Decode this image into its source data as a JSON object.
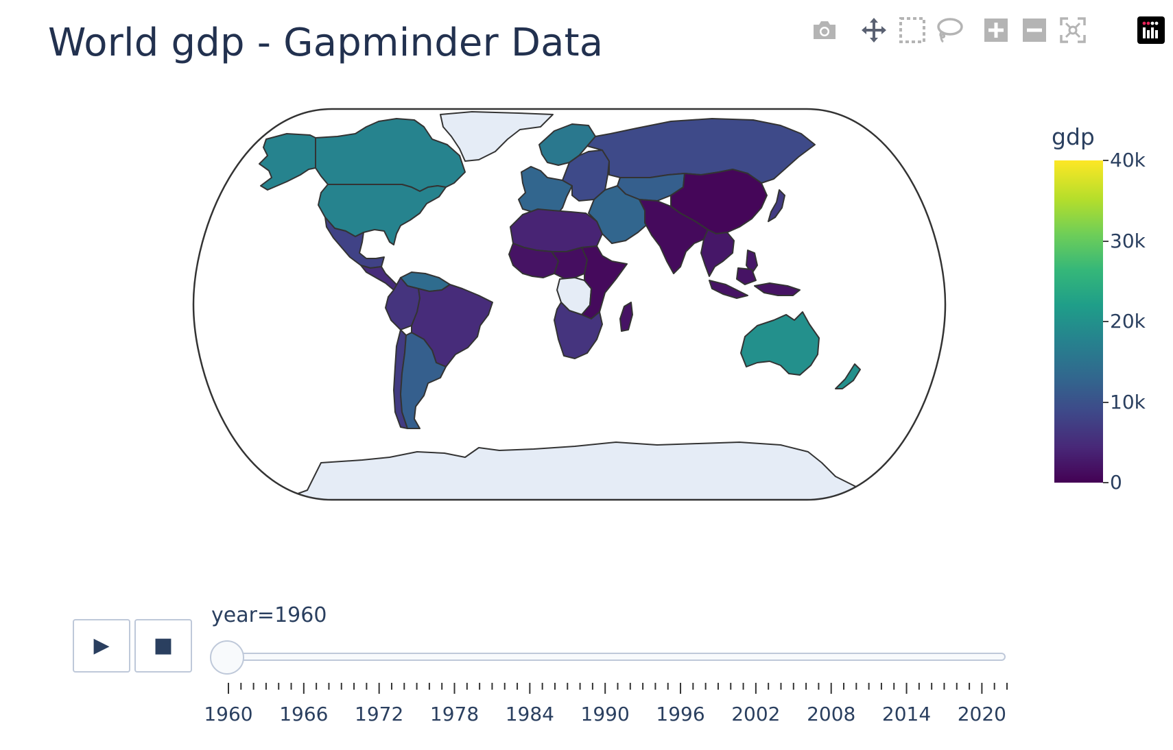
{
  "title": "World gdp - Gapminder Data",
  "modebar": {
    "buttons": [
      {
        "icon": "camera-icon"
      },
      {
        "icon": "pan-icon"
      },
      {
        "icon": "box-select-icon"
      },
      {
        "icon": "lasso-select-icon"
      },
      {
        "icon": "zoom-in-icon"
      },
      {
        "icon": "zoom-out-icon"
      },
      {
        "icon": "reset-view-icon"
      },
      {
        "icon": "plotly-logo-icon"
      }
    ]
  },
  "colorscale": {
    "name": "Viridis",
    "stops": [
      "#440154",
      "#482878",
      "#3e4989",
      "#31688e",
      "#26828e",
      "#1f9e89",
      "#35b779",
      "#6ece58",
      "#b5de2b",
      "#fde725"
    ]
  },
  "colorbar": {
    "title": "gdp",
    "ticks": [
      "0",
      "10k",
      "20k",
      "30k",
      "40k"
    ],
    "range": [
      0,
      40000
    ]
  },
  "map": {
    "projection": "natural earth",
    "land_no_data_color": "#e5ecf6",
    "border_color": "#333333"
  },
  "region_values": {
    "usa": 18000,
    "canada": 18000,
    "alaska": 18000,
    "greenland": null,
    "mexico": 8000,
    "central_america": 5000,
    "venezuela": 14000,
    "northern_south_america": 6000,
    "brazil": 5000,
    "argentina": 12000,
    "chile": 7000,
    "western_europe": 13000,
    "scandinavia": 16000,
    "eastern_europe": 9000,
    "russia": 9000,
    "kazakhstan": 12000,
    "middle_east": 13000,
    "north_africa": 4000,
    "west_africa": 2000,
    "central_africa": 1500,
    "dr_congo": null,
    "east_africa": 1000,
    "southern_africa": 6000,
    "madagascar": 2000,
    "india": 1000,
    "china": 600,
    "southeast_asia": 2500,
    "indonesia": 2000,
    "japan": 7000,
    "australia": 20000,
    "new_zealand": 20000,
    "antarctica": null
  },
  "controls": {
    "play_glyph": "▶",
    "stop_glyph": "■",
    "slider_label": "year=1960",
    "current_year": 1960,
    "year_min": 1960,
    "year_max": 2022,
    "tick_labels": [
      "1960",
      "1966",
      "1972",
      "1978",
      "1984",
      "1990",
      "1996",
      "2002",
      "2008",
      "2014",
      "2020"
    ]
  }
}
